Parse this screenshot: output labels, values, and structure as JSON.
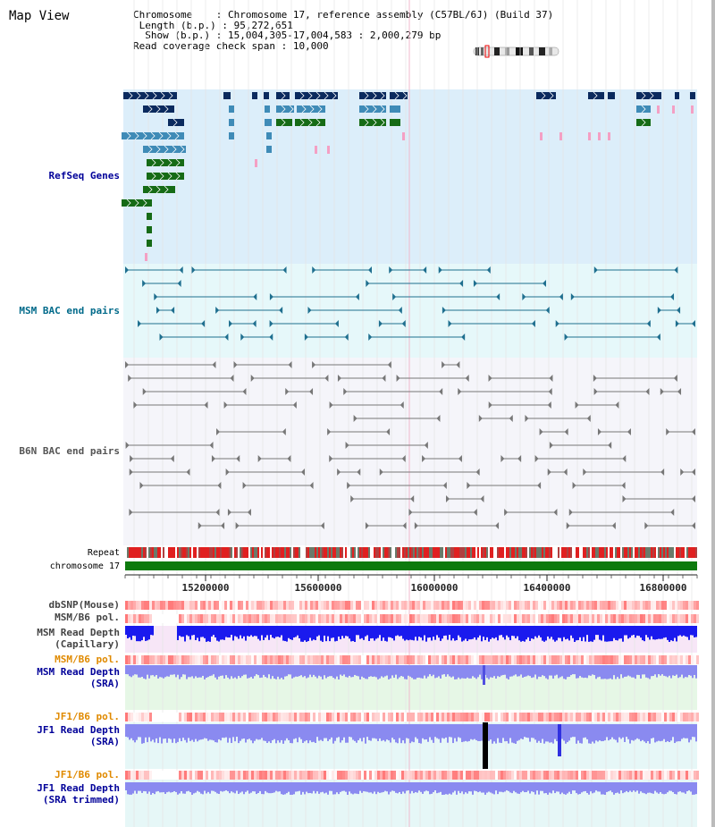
{
  "title": "Map View",
  "info": {
    "chromosome_key": "Chromosome",
    "chromosome_val": "Chromosome 17, reference assembly (C57BL/6J) (Build 37)",
    "length_key": "Length (b.p.)",
    "length_val": "95,272,651",
    "show_key": "Show (b.p.)",
    "show_val": "15,004,305-17,004,583 : 2,000,279 bp",
    "coverage_key": "Read coverage check span",
    "coverage_val": "10,000"
  },
  "track_labels": {
    "refseq": "RefSeq Genes",
    "msm_bac": "MSM BAC end pairs",
    "b6n_bac": "B6N BAC end pairs",
    "repeat": "Repeat",
    "chromosome": "chromosome 17",
    "dbsnp": "dbSNP(Mouse)",
    "msm_b6_pol": "MSM/B6 pol.",
    "msm_depth_cap_1": "MSM Read Depth",
    "msm_depth_cap_2": "(Capillary)",
    "msm_b6_pol2": "MSM/B6 pol.",
    "msm_depth_sra_1": "MSM Read Depth",
    "msm_depth_sra_2": "(SRA)",
    "jf1_b6_pol": "JF1/B6 pol.",
    "jf1_depth_sra_1": "JF1 Read Depth",
    "jf1_depth_sra_2": "(SRA)",
    "jf1_b6_pol2": "JF1/B6 pol.",
    "jf1_depth_trim_1": "JF1 Read Depth",
    "jf1_depth_trim_2": "(SRA trimmed)"
  },
  "axis_ticks": [
    "15200000",
    "15600000",
    "16000000",
    "16400000",
    "16800000"
  ],
  "colors": {
    "refseq_bg": "#dceefa",
    "msm_bac_bg": "#e6f8fa",
    "b6n_bac_bg": "#f5f5fa",
    "gene_dark": "#0b2a5e",
    "gene_mid": "#3f8bb7",
    "gene_green": "#166b16",
    "pink_mark": "#f4a0c4",
    "msm_bac_line": "#1f6f8f",
    "b6n_bac_line": "#777777",
    "chromosome_bar": "#0d7a0d",
    "depth_cap": "#1a1aee",
    "depth_sra": "#8a8af0",
    "label_orange": "#e08a00",
    "label_navy": "#000099",
    "label_teal": "#006a8a",
    "label_gray": "#444444"
  }
}
